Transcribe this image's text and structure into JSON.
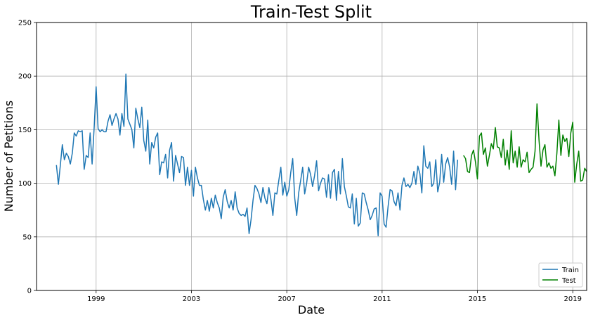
{
  "chart_data": {
    "type": "line",
    "title": "Train-Test Split",
    "xlabel": "Date",
    "ylabel": "Number of Petitions",
    "xlim": [
      "1996-07-01",
      "2019-08-01"
    ],
    "ylim": [
      0,
      250
    ],
    "x_ticks": [
      "1999",
      "2003",
      "2007",
      "2011",
      "2015",
      "2019"
    ],
    "y_ticks": [
      0,
      50,
      100,
      150,
      200,
      250
    ],
    "grid": true,
    "legend_position": "lower-right",
    "colors": {
      "train": "#1f77b4",
      "test": "#008000"
    },
    "series": [
      {
        "name": "Train",
        "start": "1997-05",
        "frequency": "monthly",
        "values": [
          117,
          99,
          117,
          136,
          122,
          128,
          125,
          118,
          128,
          147,
          144,
          149,
          148,
          149,
          113,
          126,
          124,
          147,
          118,
          152,
          190,
          151,
          148,
          150,
          148,
          148,
          158,
          164,
          154,
          160,
          165,
          160,
          145,
          165,
          153,
          202,
          160,
          155,
          150,
          133,
          170,
          160,
          152,
          171,
          140,
          130,
          159,
          118,
          138,
          133,
          143,
          147,
          108,
          120,
          119,
          127,
          105,
          131,
          138,
          102,
          126,
          118,
          110,
          125,
          124,
          98,
          115,
          98,
          112,
          88,
          115,
          105,
          98,
          98,
          85,
          75,
          84,
          74,
          86,
          77,
          89,
          82,
          77,
          67,
          87,
          94,
          83,
          77,
          84,
          75,
          92,
          77,
          72,
          70,
          71,
          69,
          77,
          53,
          66,
          84,
          98,
          95,
          90,
          82,
          96,
          86,
          81,
          96,
          85,
          70,
          91,
          90,
          103,
          115,
          89,
          101,
          88,
          94,
          110,
          123,
          86,
          70,
          91,
          103,
          115,
          90,
          100,
          115,
          108,
          97,
          107,
          121,
          93,
          100,
          105,
          104,
          87,
          108,
          86,
          110,
          113,
          84,
          111,
          90,
          123,
          97,
          88,
          78,
          77,
          90,
          62,
          86,
          60,
          63,
          91,
          90,
          82,
          75,
          66,
          70,
          76,
          77,
          51,
          91,
          88,
          62,
          59,
          78,
          94,
          93,
          83,
          79,
          91,
          75,
          98,
          105,
          97,
          99,
          96,
          100,
          111,
          99,
          116,
          109,
          91,
          135,
          116,
          114,
          120,
          97,
          100,
          122,
          92,
          101,
          127,
          101,
          118,
          124,
          115,
          99,
          130,
          94,
          122
        ]
      },
      {
        "name": "Test",
        "start": "2014-06",
        "frequency": "monthly",
        "values": [
          126,
          123,
          111,
          110,
          126,
          131,
          120,
          104,
          144,
          147,
          127,
          133,
          116,
          126,
          137,
          132,
          152,
          134,
          133,
          124,
          141,
          117,
          131,
          113,
          149,
          119,
          130,
          115,
          134,
          115,
          122,
          120,
          129,
          110,
          113,
          115,
          130,
          174,
          140,
          116,
          131,
          136,
          115,
          119,
          114,
          116,
          107,
          128,
          159,
          126,
          145,
          139,
          142,
          125,
          147,
          157,
          101,
          118,
          130,
          102,
          103,
          114,
          111
        ]
      }
    ]
  }
}
